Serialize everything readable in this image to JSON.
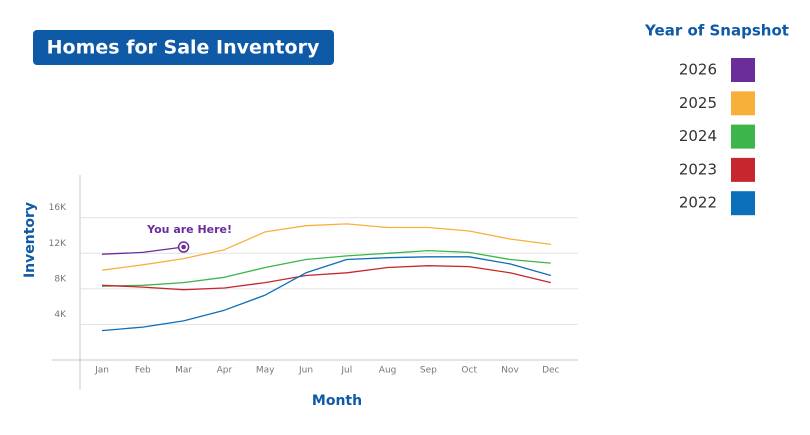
{
  "chart_data": {
    "type": "line",
    "title": "Homes for Sale Inventory",
    "x_label": "Month",
    "y_label": "Inventory",
    "annotation": "You are Here!",
    "legend_title": "Year of Snapshot",
    "categories": [
      "Jan",
      "Feb",
      "Mar",
      "Apr",
      "May",
      "Jun",
      "Jul",
      "Aug",
      "Sep",
      "Oct",
      "Nov",
      "Dec"
    ],
    "series": [
      {
        "name": "2026",
        "color": "#6a2d9a",
        "values": [
          11900,
          12100,
          12700,
          null,
          null,
          null,
          null,
          null,
          null,
          null,
          null,
          null
        ]
      },
      {
        "name": "2025",
        "color": "#f9b03b",
        "values": [
          10100,
          10700,
          11400,
          12400,
          14400,
          15100,
          15300,
          14900,
          14900,
          14500,
          13600,
          13000
        ]
      },
      {
        "name": "2024",
        "color": "#3cb54a",
        "values": [
          8300,
          8400,
          8700,
          9300,
          10400,
          11300,
          11700,
          12000,
          12300,
          12100,
          11300,
          10900
        ]
      },
      {
        "name": "2023",
        "color": "#c8262f",
        "values": [
          8400,
          8200,
          7900,
          8100,
          8700,
          9500,
          9800,
          10400,
          10600,
          10500,
          9800,
          8700
        ]
      },
      {
        "name": "2022",
        "color": "#0b6fba",
        "values": [
          3300,
          3700,
          4400,
          5600,
          7300,
          9800,
          11300,
          11500,
          11600,
          11600,
          10800,
          9500
        ]
      }
    ],
    "ylim": [
      0,
      20800
    ],
    "yticks": [
      {
        "value": 4000,
        "label": "4K"
      },
      {
        "value": 8000,
        "label": "8K"
      },
      {
        "value": 12000,
        "label": "12K"
      },
      {
        "value": 16000,
        "label": "16K"
      }
    ],
    "grid": true
  }
}
